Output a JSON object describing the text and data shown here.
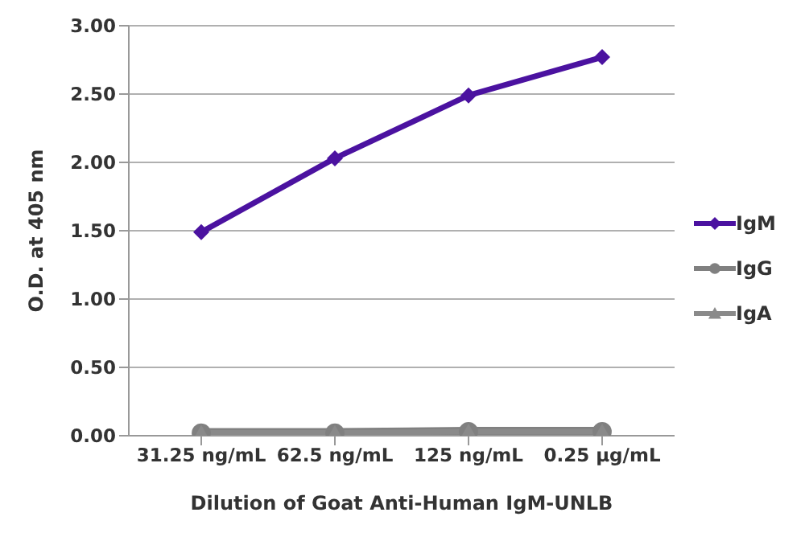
{
  "chart_data": {
    "type": "line",
    "xlabel": "Dilution of Goat Anti-Human IgM-UNLB",
    "ylabel": "O.D. at 405 nm",
    "categories": [
      "31.25 ng/mL",
      "62.5 ng/mL",
      "125 ng/mL",
      "0.25 µg/mL"
    ],
    "series": [
      {
        "name": "IgM",
        "color": "#4b12a0",
        "marker": "diamond",
        "values": [
          1.49,
          2.03,
          2.49,
          2.77
        ]
      },
      {
        "name": "IgG",
        "color": "#808080",
        "marker": "circle",
        "values": [
          0.02,
          0.02,
          0.03,
          0.03
        ]
      },
      {
        "name": "IgA",
        "color": "#8a8a8a",
        "marker": "triangle",
        "values": [
          0.02,
          0.02,
          0.03,
          0.03
        ]
      }
    ],
    "ylim": [
      0,
      3
    ],
    "yticks": [
      {
        "value": 0,
        "label": "0.00"
      },
      {
        "value": 0.5,
        "label": "0.50"
      },
      {
        "value": 1,
        "label": "1.00"
      },
      {
        "value": 1.5,
        "label": "1.50"
      },
      {
        "value": 2,
        "label": "2.00"
      },
      {
        "value": 2.5,
        "label": "2.50"
      },
      {
        "value": 3,
        "label": "3.00"
      }
    ],
    "grid": "y",
    "legend": "right",
    "line_style": "solid"
  }
}
